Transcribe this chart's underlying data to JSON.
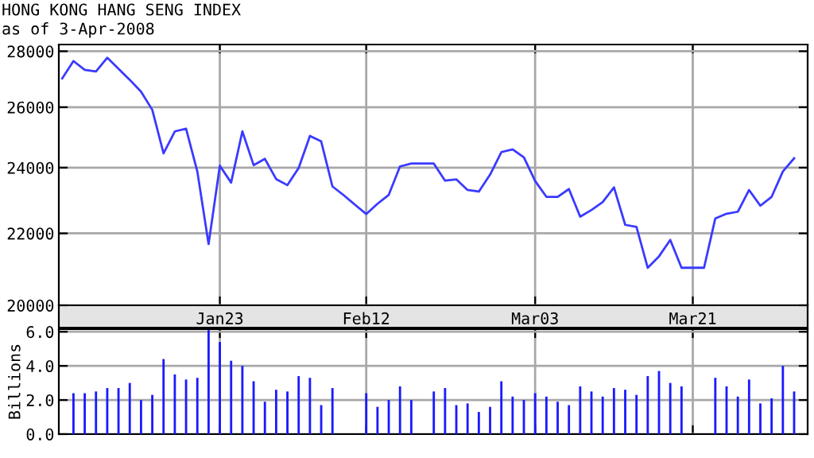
{
  "chart_data": [
    {
      "type": "line",
      "title": "HONG KONG HANG SENG INDEX",
      "subtitle": "as of 3-Apr-2008",
      "color": "#3a3aff",
      "log": "y",
      "grid": true,
      "marker": "none",
      "line_style": "solid",
      "categories": [
        null,
        null,
        null,
        null,
        null,
        null,
        null,
        null,
        null,
        null,
        null,
        null,
        null,
        null,
        "Jan23",
        null,
        null,
        null,
        null,
        null,
        null,
        null,
        null,
        null,
        null,
        null,
        null,
        "Feb12",
        null,
        null,
        null,
        null,
        null,
        null,
        null,
        null,
        null,
        null,
        null,
        null,
        null,
        null,
        "Mar03",
        null,
        null,
        null,
        null,
        null,
        null,
        null,
        null,
        null,
        null,
        null,
        null,
        null,
        "Mar21",
        null,
        null,
        null,
        null,
        null,
        null,
        null,
        null,
        null
      ],
      "values": [
        27010,
        27640,
        27320,
        27260,
        27760,
        27360,
        26960,
        26540,
        25910,
        24460,
        25180,
        25270,
        23880,
        21690,
        24060,
        23530,
        25180,
        24080,
        24280,
        23640,
        23450,
        23990,
        25030,
        24850,
        23410,
        23140,
        22850,
        22570,
        22880,
        23150,
        24040,
        24130,
        24130,
        24130,
        23590,
        23630,
        23300,
        23250,
        23780,
        24500,
        24590,
        24330,
        23580,
        23090,
        23090,
        23330,
        22490,
        22690,
        22930,
        23380,
        22250,
        22190,
        21020,
        21340,
        21810,
        21020,
        21020,
        21020,
        22440,
        22580,
        22640,
        23300,
        22820,
        23090,
        23880,
        24300
      ],
      "ylim": [
        20000,
        28250
      ],
      "yticks": [
        20000,
        22000,
        24000,
        26000,
        28000
      ]
    },
    {
      "type": "bar",
      "ylabel": "Billions",
      "color": "#1a1aff",
      "grid": true,
      "tick_labels": "y",
      "categories": [
        null,
        null,
        null,
        null,
        null,
        null,
        null,
        null,
        null,
        null,
        null,
        null,
        null,
        null,
        null,
        null,
        null,
        null,
        null,
        null,
        null,
        null,
        null,
        null,
        null,
        null,
        null,
        null,
        null,
        null,
        null,
        null,
        null,
        null,
        null,
        null,
        null,
        null,
        null,
        null,
        null,
        null,
        null,
        null,
        null,
        null,
        null,
        null,
        null,
        null,
        null,
        null,
        null,
        null,
        null,
        null,
        null,
        null,
        null,
        null,
        null,
        null,
        null,
        null,
        null,
        null
      ],
      "values": [
        null,
        2.4,
        2.4,
        2.5,
        2.7,
        2.7,
        3.0,
        2.0,
        2.3,
        4.4,
        3.5,
        3.2,
        3.3,
        6.1,
        5.4,
        4.3,
        4.0,
        3.1,
        1.9,
        2.6,
        2.5,
        3.4,
        3.3,
        1.7,
        2.7,
        null,
        null,
        2.4,
        1.6,
        2.0,
        2.8,
        2.0,
        null,
        2.5,
        2.7,
        1.7,
        1.8,
        1.3,
        1.6,
        3.1,
        2.2,
        2.0,
        2.4,
        2.2,
        1.9,
        1.7,
        2.8,
        2.5,
        2.2,
        2.7,
        2.6,
        2.3,
        3.4,
        3.7,
        3.0,
        2.8,
        null,
        null,
        3.3,
        2.8,
        2.2,
        3.2,
        1.8,
        2.1,
        4.0,
        2.5
      ],
      "ylim": [
        0,
        6.15
      ],
      "yticks": [
        {
          "value": 0,
          "label": "0.0"
        },
        {
          "value": 2,
          "label": "2.0"
        },
        {
          "value": 4,
          "label": "4.0"
        },
        {
          "value": 6,
          "label": "6.0"
        }
      ]
    }
  ]
}
